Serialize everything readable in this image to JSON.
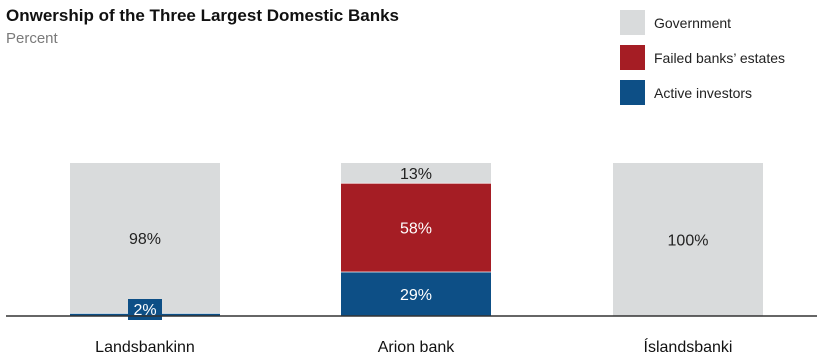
{
  "title": "Onwership of the Three Largest Domestic Banks",
  "subtitle": "Percent",
  "legend": [
    {
      "name": "Government",
      "color": "#d9dbdc"
    },
    {
      "name": "Failed banks’ estates",
      "color": "#a51d24"
    },
    {
      "name": "Active investors",
      "color": "#0d4f86"
    }
  ],
  "chart_data": {
    "type": "bar",
    "stacked": true,
    "ylabel": "Percent",
    "ylim": [
      0,
      100
    ],
    "legend_position": "top-right",
    "grid": false,
    "categories": [
      "Landsbankinn",
      "Arion bank",
      "Íslandsbanki"
    ],
    "series": [
      {
        "name": "Active investors",
        "color": "#0d4f86",
        "values": [
          2,
          29,
          0
        ],
        "labels": [
          "2%",
          "29%",
          ""
        ]
      },
      {
        "name": "Failed banks’ estates",
        "color": "#a51d24",
        "values": [
          0,
          58,
          0
        ],
        "labels": [
          "",
          "58%",
          ""
        ]
      },
      {
        "name": "Government",
        "color": "#d9dbdc",
        "values": [
          98,
          13,
          100
        ],
        "labels": [
          "98%",
          "13%",
          "100%"
        ]
      }
    ]
  }
}
